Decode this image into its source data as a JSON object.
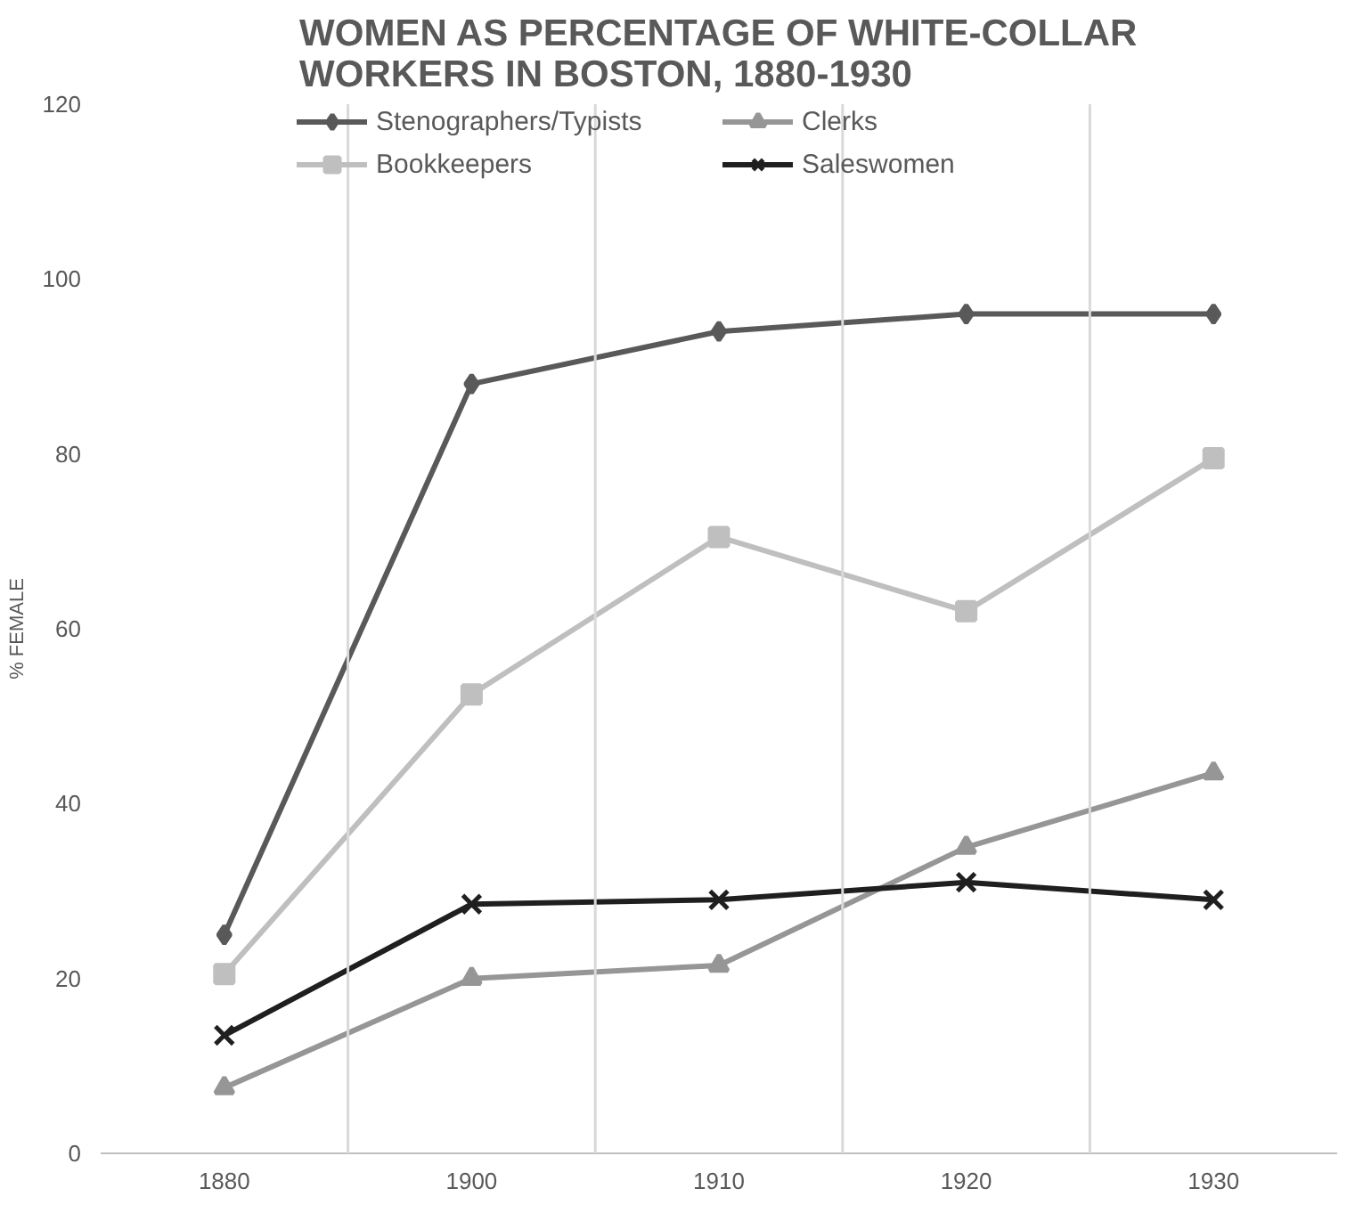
{
  "chart_data": {
    "type": "line",
    "title": "WOMEN AS PERCENTAGE OF WHITE-COLLAR WORKERS IN BOSTON, 1880-1930",
    "ylabel": "% FEMALE",
    "categories": [
      "1880",
      "1900",
      "1910",
      "1920",
      "1930"
    ],
    "series": [
      {
        "name": "Stenographers/Typists",
        "color": "#595959",
        "marker": "diamond",
        "values": [
          25,
          88,
          94,
          96,
          96
        ]
      },
      {
        "name": "Bookkeepers",
        "color": "#bfbfbf",
        "marker": "square",
        "values": [
          20.5,
          52.5,
          70.5,
          62,
          79.5
        ]
      },
      {
        "name": "Clerks",
        "color": "#969696",
        "marker": "triangle",
        "values": [
          7.5,
          20,
          21.5,
          35,
          43.5
        ]
      },
      {
        "name": "Saleswomen",
        "color": "#1f1f1f",
        "marker": "cross",
        "values": [
          13.5,
          28.5,
          29,
          31,
          29
        ]
      }
    ],
    "ylim": [
      0,
      120
    ],
    "yticks": [
      0,
      20,
      40,
      60,
      80,
      100,
      120
    ],
    "grid": "x",
    "legend": "top",
    "line_style": "solid"
  }
}
